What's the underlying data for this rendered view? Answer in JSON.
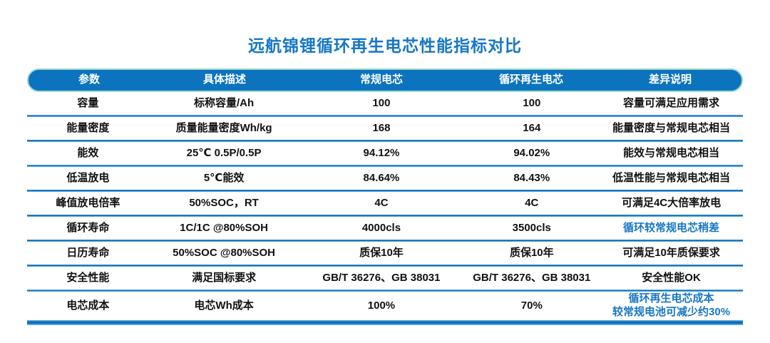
{
  "title": "远航锦锂循环再生电芯性能指标对比",
  "colors": {
    "header_bg": "#0c73bf",
    "header_border": "#9ad8cb",
    "accent": "#1677c4",
    "line_dark": "#0f6cb4",
    "line_light": "#55a9dc"
  },
  "table": {
    "headers": [
      "参数",
      "具体描述",
      "常规电芯",
      "循环再生电芯",
      "差异说明"
    ],
    "rows": [
      {
        "param": "容量",
        "desc": "标称容量/Ah",
        "regular": "100",
        "recycled": "100",
        "diff": "容量可满足应用需求",
        "diff_highlight": false
      },
      {
        "param": "能量密度",
        "desc": "质量能量密度Wh/kg",
        "regular": "168",
        "recycled": "164",
        "diff": "能量密度与常规电芯相当",
        "diff_highlight": false
      },
      {
        "param": "能效",
        "desc": "25℃ 0.5P/0.5P",
        "regular": "94.12%",
        "recycled": "94.02%",
        "diff": "能效与常规电芯相当",
        "diff_highlight": false
      },
      {
        "param": "低温放电",
        "desc": "5℃能效",
        "regular": "84.64%",
        "recycled": "84.43%",
        "diff": "低温性能与常规电芯相当",
        "diff_highlight": false
      },
      {
        "param": "峰值放电倍率",
        "desc": "50%SOC，RT",
        "regular": "4C",
        "recycled": "4C",
        "diff": "可满足4C大倍率放电",
        "diff_highlight": false
      },
      {
        "param": "循环寿命",
        "desc": "1C/1C @80%SOH",
        "regular": "4000cls",
        "recycled": "3500cls",
        "diff": "循环较常规电芯稍差",
        "diff_highlight": true
      },
      {
        "param": "日历寿命",
        "desc": "50%SOC @80%SOH",
        "regular": "质保10年",
        "recycled": "质保10年",
        "diff": "可满足10年质保要求",
        "diff_highlight": false
      },
      {
        "param": "安全性能",
        "desc": "满足国标要求",
        "regular": "GB/T 36276、GB 38031",
        "recycled": "GB/T 36276、GB 38031",
        "diff": "安全性能OK",
        "diff_highlight": false
      },
      {
        "param": "电芯成本",
        "desc": "电芯Wh成本",
        "regular": "100%",
        "recycled": "70%",
        "diff": "循环再生电芯成本\n较常规电池可减少约30%",
        "diff_highlight": true
      }
    ]
  }
}
